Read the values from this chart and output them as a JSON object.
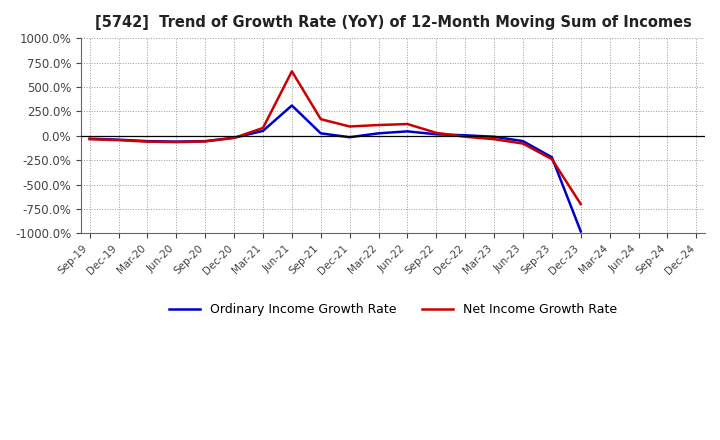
{
  "title": "[5742]  Trend of Growth Rate (YoY) of 12-Month Moving Sum of Incomes",
  "ylim": [
    -1000,
    1000
  ],
  "yticks": [
    -1000,
    -750,
    -500,
    -250,
    0,
    250,
    500,
    750,
    1000
  ],
  "background_color": "#ffffff",
  "plot_bg_color": "#ffffff",
  "grid_color": "#aaaaaa",
  "line_color_ordinary": "#0000cc",
  "line_color_net": "#cc0000",
  "legend_ordinary": "Ordinary Income Growth Rate",
  "legend_net": "Net Income Growth Rate",
  "all_dates": [
    "Sep-19",
    "Dec-19",
    "Mar-20",
    "Jun-20",
    "Sep-20",
    "Dec-20",
    "Mar-21",
    "Jun-21",
    "Sep-21",
    "Dec-21",
    "Mar-22",
    "Jun-22",
    "Sep-22",
    "Dec-22",
    "Mar-23",
    "Jun-23",
    "Sep-23",
    "Dec-23",
    "Mar-24",
    "Jun-24",
    "Sep-24",
    "Dec-24"
  ],
  "data_dates": [
    "Sep-19",
    "Dec-19",
    "Mar-20",
    "Jun-20",
    "Sep-20",
    "Dec-20",
    "Mar-21",
    "Jun-21",
    "Sep-21",
    "Dec-21",
    "Mar-22",
    "Jun-22",
    "Sep-22",
    "Dec-22",
    "Mar-23",
    "Jun-23",
    "Sep-23",
    "Dec-23"
  ],
  "ordinary_income_growth": [
    -30,
    -40,
    -55,
    -60,
    -55,
    -20,
    50,
    310,
    25,
    -15,
    25,
    45,
    15,
    5,
    -10,
    -55,
    -220,
    -980
  ],
  "net_income_growth": [
    -35,
    -45,
    -60,
    -65,
    -58,
    -22,
    80,
    660,
    170,
    95,
    110,
    120,
    30,
    -10,
    -35,
    -80,
    -240,
    -700
  ]
}
